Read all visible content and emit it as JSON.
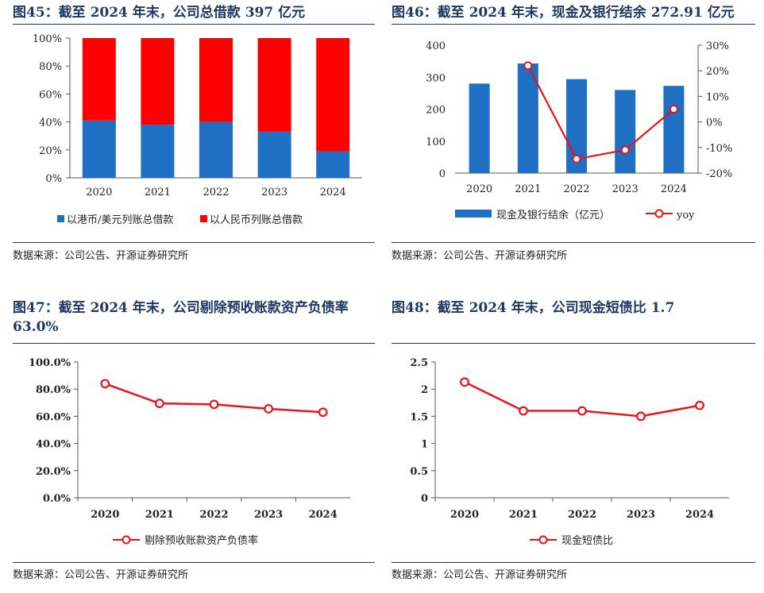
{
  "source_text": "数据来源：公司公告、开源证券研究所",
  "charts": [
    {
      "title": "图45：截至 2024 年末，公司总借款 397 亿元",
      "chart_data": {
        "type": "bar",
        "stacked": true,
        "categories": [
          "2020",
          "2021",
          "2022",
          "2023",
          "2024"
        ],
        "y_ticks": [
          "0%",
          "20%",
          "40%",
          "60%",
          "80%",
          "100%"
        ],
        "ylim": [
          0,
          100
        ],
        "series": [
          {
            "name": "以港币/美元列账总借款",
            "color": "#1f6fc5",
            "values": [
              41,
              38,
              40,
              33,
              19
            ]
          },
          {
            "name": "以人民币列账总借款",
            "color": "#ff0000",
            "values": [
              59,
              62,
              60,
              67,
              81
            ]
          }
        ],
        "legend_position": "bottom"
      }
    },
    {
      "title": "图46：截至 2024 年末，现金及银行结余 272.91 亿元",
      "chart_data": {
        "type": "bar",
        "categories": [
          "2020",
          "2021",
          "2022",
          "2023",
          "2024"
        ],
        "y_ticks": [
          "0",
          "100",
          "200",
          "300",
          "400"
        ],
        "ylim": [
          0,
          400
        ],
        "y2_ticks": [
          "-20%",
          "-10%",
          "0%",
          "10%",
          "20%",
          "30%"
        ],
        "y2lim": [
          -20,
          30
        ],
        "series": [
          {
            "name": "现金及银行结余（亿元）",
            "type": "bar",
            "axis": "left",
            "color": "#1f6fc5",
            "values": [
              280,
              343,
              294,
              260,
              272.91
            ]
          },
          {
            "name": "yoy",
            "type": "line",
            "axis": "right",
            "color": "#e8141c",
            "values": [
              null,
              22,
              -14.5,
              -11,
              5
            ]
          }
        ],
        "legend_position": "bottom"
      }
    },
    {
      "title": "图47：截至 2024 年末，公司剔除预收账款资产负债率 63.0%",
      "chart_data": {
        "type": "line",
        "categories": [
          "2020",
          "2021",
          "2022",
          "2023",
          "2024"
        ],
        "y_ticks": [
          "0.0%",
          "20.0%",
          "40.0%",
          "60.0%",
          "80.0%",
          "100.0%"
        ],
        "ylim": [
          0,
          100
        ],
        "series": [
          {
            "name": "剔除预收账款资产负债率",
            "color": "#e8141c",
            "values": [
              84,
              69.5,
              68.8,
              65.5,
              63
            ]
          }
        ],
        "legend_position": "bottom"
      }
    },
    {
      "title": "图48：截至 2024 年末，公司现金短债比 1.7",
      "chart_data": {
        "type": "line",
        "categories": [
          "2020",
          "2021",
          "2022",
          "2023",
          "2024"
        ],
        "y_ticks": [
          "0",
          "0.5",
          "1",
          "1.5",
          "2",
          "2.5"
        ],
        "ylim": [
          0,
          2.5
        ],
        "series": [
          {
            "name": "现金短债比",
            "color": "#e8141c",
            "values": [
              2.13,
              1.6,
              1.6,
              1.5,
              1.7
            ]
          }
        ],
        "legend_position": "bottom"
      }
    }
  ]
}
